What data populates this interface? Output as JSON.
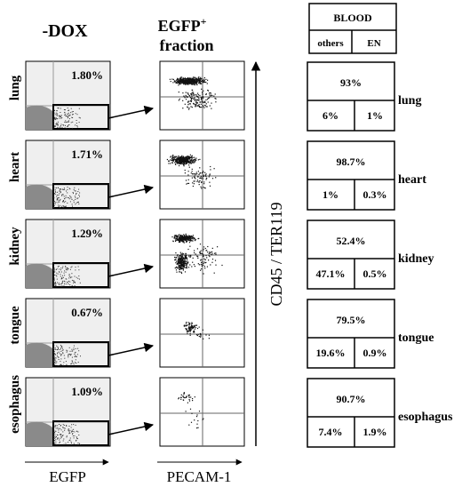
{
  "headers": {
    "left": "-DOX",
    "middle_line1": "EGFP",
    "middle_sup": "+",
    "middle_line2": "fraction",
    "blood_title": "BLOOD",
    "blood_others": "others",
    "blood_en": "EN"
  },
  "axis_labels": {
    "left_x": "EGFP",
    "middle_x": "PECAM-1",
    "vertical": "CD45 / TER119"
  },
  "rows": [
    {
      "organ": "lung",
      "egfp_percent": "1.80%",
      "blood_total": "93%",
      "blood_others": "6%",
      "blood_en": "1%"
    },
    {
      "organ": "heart",
      "egfp_percent": "1.71%",
      "blood_total": "98.7%",
      "blood_others": "1%",
      "blood_en": "0.3%"
    },
    {
      "organ": "kidney",
      "egfp_percent": "1.29%",
      "blood_total": "52.4%",
      "blood_others": "47.1%",
      "blood_en": "0.5%"
    },
    {
      "organ": "tongue",
      "egfp_percent": "0.67%",
      "blood_total": "79.5%",
      "blood_others": "19.6%",
      "blood_en": "0.9%"
    },
    {
      "organ": "esophagus",
      "egfp_percent": "1.09%",
      "blood_total": "90.7%",
      "blood_others": "7.4%",
      "blood_en": "1.9%"
    }
  ],
  "colors": {
    "ink": "#000000",
    "shade": "#efefef",
    "scatter": "#8a8a8a"
  }
}
